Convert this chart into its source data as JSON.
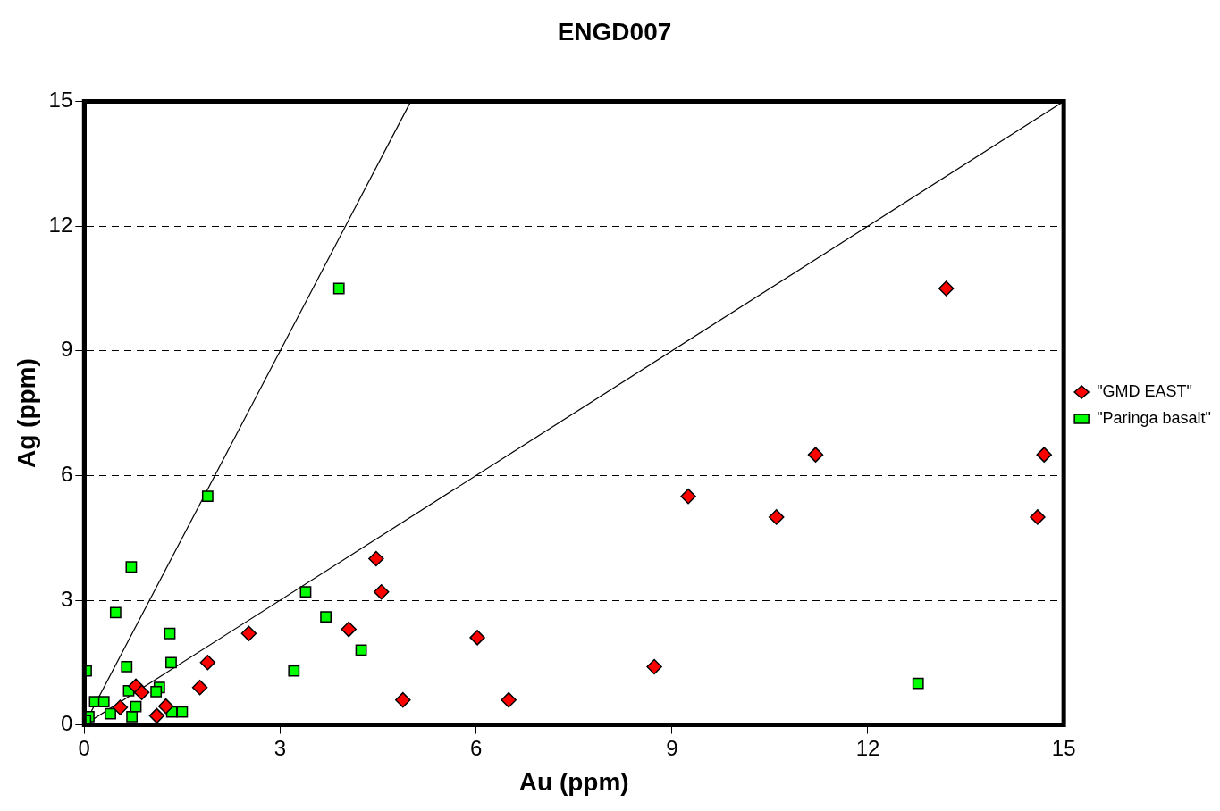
{
  "chart_data": {
    "type": "scatter",
    "title": "ENGD007",
    "xlabel": "Au (ppm)",
    "ylabel": "Ag (ppm)",
    "xlim": [
      0,
      15
    ],
    "xticks": [
      0,
      3,
      6,
      9,
      12,
      15
    ],
    "ylim": [
      0,
      15
    ],
    "yticks": [
      0,
      3,
      6,
      9,
      12,
      15
    ],
    "grid": "y",
    "legend": "right",
    "series": [
      {
        "name": "\"GMD EAST\"",
        "color": "#ff0000",
        "marker": "diamond",
        "x": [
          13.2,
          14.7,
          11.2,
          9.25,
          10.6,
          14.6,
          4.47,
          4.55,
          4.05,
          2.52,
          6.02,
          8.73,
          1.89,
          1.77,
          4.88,
          6.5,
          1.11,
          0.79,
          0.88,
          0.55,
          1.25
        ],
        "values": [
          10.5,
          6.5,
          6.5,
          5.5,
          5.0,
          5.0,
          4.0,
          3.2,
          2.3,
          2.2,
          2.1,
          1.4,
          1.5,
          0.9,
          0.6,
          0.6,
          0.22,
          0.93,
          0.78,
          0.42,
          0.45
        ]
      },
      {
        "name": "\"Paringa basalt\"",
        "color": "#00ff00",
        "marker": "square",
        "x": [
          3.9,
          1.89,
          0.72,
          3.39,
          0.48,
          3.7,
          1.31,
          4.24,
          3.21,
          12.77,
          0.03,
          0.65,
          1.33,
          1.15,
          1.1,
          0.68,
          1.34,
          1.5,
          0.73,
          0.79,
          0.4,
          0.07,
          0.02,
          0.16,
          0.3
        ],
        "values": [
          10.5,
          5.5,
          3.8,
          3.2,
          2.7,
          2.6,
          2.2,
          1.8,
          1.3,
          1.0,
          1.3,
          1.4,
          1.5,
          0.9,
          0.8,
          0.82,
          0.31,
          0.31,
          0.2,
          0.44,
          0.27,
          0.2,
          0.1,
          0.56,
          0.56
        ]
      },
      {
        "type": "line",
        "color": "#000000",
        "marker": "none",
        "x": [
          0,
          5
        ],
        "values": [
          0,
          15
        ]
      },
      {
        "type": "line",
        "color": "#000000",
        "marker": "none",
        "x": [
          0,
          15
        ],
        "values": [
          0,
          15
        ]
      }
    ]
  }
}
